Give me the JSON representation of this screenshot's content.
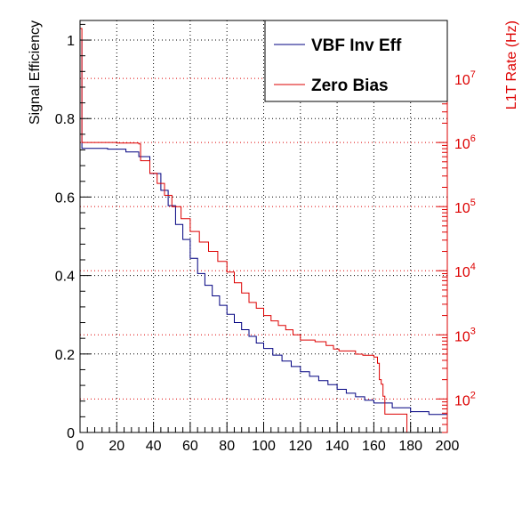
{
  "chart_data": {
    "type": "line",
    "xlabel": "",
    "xlim": [
      0,
      200
    ],
    "x_ticks": [
      0,
      20,
      40,
      60,
      80,
      100,
      120,
      140,
      160,
      180,
      200
    ],
    "y_left": {
      "label": "Signal Efficiency",
      "lim": [
        0,
        1.05
      ],
      "ticks": [
        0,
        0.2,
        0.4,
        0.6,
        0.8,
        1
      ],
      "tick_labels": [
        "0",
        "0.2",
        "0.4",
        "0.6",
        "0.8",
        "1"
      ],
      "color": "#000000"
    },
    "y_right": {
      "label": "L1T Rate (Hz)",
      "scale": "log",
      "lim": [
        30,
        80000000
      ],
      "ticks": [
        100,
        1000,
        10000,
        100000,
        1000000,
        10000000
      ],
      "tick_exponents": [
        "2",
        "3",
        "4",
        "5",
        "6",
        "7"
      ],
      "tick_base": "10",
      "color": "#dd0000"
    },
    "grid": true,
    "legend_position": "top-right",
    "series": [
      {
        "name": "VBF Inv Eff",
        "axis": "left",
        "color": "#000080",
        "style": "step",
        "points": [
          [
            0,
            1.0
          ],
          [
            1,
            0.724
          ],
          [
            15,
            0.722
          ],
          [
            25,
            0.715
          ],
          [
            32,
            0.703
          ],
          [
            38,
            0.66
          ],
          [
            44,
            0.617
          ],
          [
            48,
            0.578
          ],
          [
            52,
            0.53
          ],
          [
            56,
            0.492
          ],
          [
            60,
            0.444
          ],
          [
            64,
            0.405
          ],
          [
            68,
            0.375
          ],
          [
            72,
            0.348
          ],
          [
            76,
            0.324
          ],
          [
            80,
            0.301
          ],
          [
            84,
            0.28
          ],
          [
            88,
            0.262
          ],
          [
            92,
            0.245
          ],
          [
            96,
            0.228
          ],
          [
            100,
            0.214
          ],
          [
            105,
            0.197
          ],
          [
            110,
            0.182
          ],
          [
            115,
            0.168
          ],
          [
            120,
            0.155
          ],
          [
            125,
            0.143
          ],
          [
            130,
            0.132
          ],
          [
            135,
            0.122
          ],
          [
            140,
            0.11
          ],
          [
            145,
            0.1
          ],
          [
            150,
            0.091
          ],
          [
            155,
            0.082
          ],
          [
            160,
            0.075
          ],
          [
            170,
            0.063
          ],
          [
            180,
            0.053
          ],
          [
            190,
            0.046
          ],
          [
            200,
            0.039
          ]
        ]
      },
      {
        "name": "Zero Bias",
        "axis": "right",
        "color": "#dd0000",
        "style": "step",
        "points": [
          [
            0,
            60000000
          ],
          [
            1,
            1000000
          ],
          [
            20,
            980000
          ],
          [
            32,
            950000
          ],
          [
            33,
            520000
          ],
          [
            38,
            330000
          ],
          [
            42,
            230000
          ],
          [
            46,
            150000
          ],
          [
            50,
            100000
          ],
          [
            55,
            65000
          ],
          [
            60,
            41000
          ],
          [
            65,
            28000
          ],
          [
            70,
            20000
          ],
          [
            75,
            14000
          ],
          [
            80,
            9500
          ],
          [
            84,
            6500
          ],
          [
            88,
            4500
          ],
          [
            92,
            3200
          ],
          [
            96,
            2600
          ],
          [
            100,
            2000
          ],
          [
            104,
            1650
          ],
          [
            108,
            1400
          ],
          [
            112,
            1200
          ],
          [
            116,
            1000
          ],
          [
            120,
            830
          ],
          [
            128,
            780
          ],
          [
            134,
            680
          ],
          [
            138,
            600
          ],
          [
            141,
            560
          ],
          [
            148,
            560
          ],
          [
            150,
            500
          ],
          [
            154,
            480
          ],
          [
            160,
            450
          ],
          [
            162,
            360
          ],
          [
            163,
            200
          ],
          [
            164,
            170
          ],
          [
            165,
            110
          ],
          [
            166,
            58
          ],
          [
            178,
            58
          ],
          [
            178,
            28
          ]
        ]
      }
    ]
  }
}
